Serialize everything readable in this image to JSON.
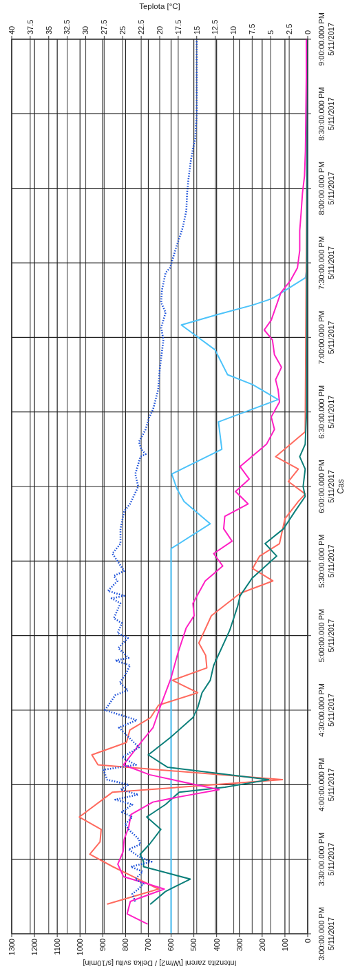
{
  "chart_data": {
    "type": "line",
    "orientation": "horizontal",
    "xlabel": "Intenzita zareni [W/m2] / Delka svitu [s/10min]",
    "x2label": "Teplota [°C]",
    "ylabel": "Cas",
    "ylim": [
      "2017-05-11T15:00",
      "2017-05-11T21:00"
    ],
    "yticks": [
      {
        "value": "2017-05-11T15:00",
        "label": "3:00:00.000 PM\n5/11/2017"
      },
      {
        "value": "2017-05-11T15:30",
        "label": "3:30:00.000 PM\n5/11/2017"
      },
      {
        "value": "2017-05-11T16:00",
        "label": "4:00:00.000 PM\n5/11/2017"
      },
      {
        "value": "2017-05-11T16:30",
        "label": "4:30:00.000 PM\n5/11/2017"
      },
      {
        "value": "2017-05-11T17:00",
        "label": "5:00:00.000 PM\n5/11/2017"
      },
      {
        "value": "2017-05-11T17:30",
        "label": "5:30:00.000 PM\n5/11/2017"
      },
      {
        "value": "2017-05-11T18:00",
        "label": "6:00:00.000 PM\n5/11/2017"
      },
      {
        "value": "2017-05-11T18:30",
        "label": "6:30:00.000 PM\n5/11/2017"
      },
      {
        "value": "2017-05-11T19:00",
        "label": "7:00:00.000 PM\n5/11/2017"
      },
      {
        "value": "2017-05-11T19:30",
        "label": "7:30:00.000 PM\n5/11/2017"
      },
      {
        "value": "2017-05-11T20:00",
        "label": "8:00:00.000 PM\n5/11/2017"
      },
      {
        "value": "2017-05-11T20:30",
        "label": "8:30:00.000 PM\n5/11/2017"
      },
      {
        "value": "2017-05-11T21:00",
        "label": "9:00:00.000 PM\n5/11/2017"
      }
    ],
    "xlim": [
      1300,
      0
    ],
    "xticks": [
      1300,
      1200,
      1100,
      1000,
      900,
      800,
      700,
      600,
      500,
      400,
      300,
      200,
      100,
      0
    ],
    "x2lim": [
      40,
      0
    ],
    "x2ticks": [
      40,
      37.5,
      35,
      32.5,
      30,
      27.5,
      25,
      22.5,
      20,
      17.5,
      15,
      12.5,
      10,
      7.5,
      5,
      2.5,
      0
    ],
    "grid": true,
    "marker": "none",
    "series": [
      {
        "color": "#4cc3fa",
        "x": [
          "2017-05-11T15:00",
          "2017-05-11T17:35",
          "2017-05-11T17:45",
          "2017-05-11T17:54",
          "2017-05-11T17:59",
          "2017-05-11T18:05",
          "2017-05-11T18:15",
          "2017-05-11T18:26",
          "2017-05-11T18:35",
          "2017-05-11T18:41",
          "2017-05-11T18:45",
          "2017-05-11T18:55",
          "2017-05-11T19:05",
          "2017-05-11T19:09",
          "2017-05-11T19:13",
          "2017-05-11T19:15",
          "2017-05-11T19:16",
          "2017-05-11T19:24",
          "2017-05-11T19:30",
          "2017-05-11T21:00"
        ],
        "values": [
          600,
          600,
          428,
          543,
          574,
          597,
          377,
          392,
          130,
          242,
          352,
          407,
          555,
          403,
          242,
          176,
          150,
          10,
          0,
          0
        ]
      },
      {
        "color": "#ff6a5e",
        "x": [
          "2017-05-11T15:12",
          "2017-05-11T15:18",
          "2017-05-11T15:27",
          "2017-05-11T15:32",
          "2017-05-11T15:37",
          "2017-05-11T15:42",
          "2017-05-11T15:47",
          "2017-05-11T15:57",
          "2017-05-11T16:02",
          "2017-05-11T16:08",
          "2017-05-11T16:12",
          "2017-05-11T16:17",
          "2017-05-11T16:22",
          "2017-05-11T16:27",
          "2017-05-11T16:32",
          "2017-05-11T16:37",
          "2017-05-11T16:42",
          "2017-05-11T16:47",
          "2017-05-11T16:52",
          "2017-05-11T16:57",
          "2017-05-11T17:08",
          "2017-05-11T17:17",
          "2017-05-11T17:22",
          "2017-05-11T17:27",
          "2017-05-11T17:32",
          "2017-05-11T17:37",
          "2017-05-11T17:47",
          "2017-05-11T17:54",
          "2017-05-11T17:57",
          "2017-05-11T18:02",
          "2017-05-11T18:07",
          "2017-05-11T18:12",
          "2017-05-11T18:22",
          "2017-05-11T21:00"
        ],
        "values": [
          879,
          655,
          856,
          957,
          912,
          907,
          1003,
          857,
          111,
          921,
          948,
          796,
          781,
          690,
          655,
          483,
          594,
          443,
          448,
          478,
          423,
          297,
          153,
          242,
          211,
          124,
          100,
          41,
          11,
          85,
          41,
          141,
          11,
          0
        ]
      },
      {
        "color": "#0b7f7a",
        "x": [
          "2017-05-11T15:12",
          "2017-05-11T15:17",
          "2017-05-11T15:22",
          "2017-05-11T15:27",
          "2017-05-11T15:29",
          "2017-05-11T15:32",
          "2017-05-11T15:36",
          "2017-05-11T15:42",
          "2017-05-11T15:47",
          "2017-05-11T15:52",
          "2017-05-11T15:57",
          "2017-05-11T15:59",
          "2017-05-11T16:02",
          "2017-05-11T16:07",
          "2017-05-11T16:12",
          "2017-05-11T16:19",
          "2017-05-11T16:27",
          "2017-05-11T16:31",
          "2017-05-11T16:37",
          "2017-05-11T16:42",
          "2017-05-11T16:48",
          "2017-05-11T17:02",
          "2017-05-11T17:12",
          "2017-05-11T17:16",
          "2017-05-11T17:23",
          "2017-05-11T17:32",
          "2017-05-11T17:37",
          "2017-05-11T17:43",
          "2017-05-11T17:50",
          "2017-05-11T17:56",
          "2017-05-11T18:00",
          "2017-05-11T18:07",
          "2017-05-11T18:12",
          "2017-05-11T18:17",
          "2017-05-11T18:30",
          "2017-05-11T19:00",
          "2017-05-11T20:00",
          "2017-05-11T21:00"
        ],
        "values": [
          690,
          625,
          516,
          721,
          721,
          736,
          695,
          645,
          707,
          625,
          564,
          363,
          171,
          615,
          700,
          603,
          504,
          483,
          464,
          428,
          413,
          343,
          307,
          297,
          245,
          136,
          187,
          106,
          56,
          11,
          20,
          11,
          35,
          11,
          5,
          4,
          3,
          2
        ]
      },
      {
        "color": "#ff1fc4",
        "x": [
          "2017-05-11T15:04",
          "2017-05-11T15:08",
          "2017-05-11T15:13",
          "2017-05-11T15:18",
          "2017-05-11T15:20",
          "2017-05-11T15:23",
          "2017-05-11T15:28",
          "2017-05-11T15:33",
          "2017-05-11T15:38",
          "2017-05-11T15:43",
          "2017-05-11T15:48",
          "2017-05-11T15:53",
          "2017-05-11T15:55",
          "2017-05-11T15:58",
          "2017-05-11T16:00",
          "2017-05-11T16:04",
          "2017-05-11T16:08",
          "2017-05-11T16:18",
          "2017-05-11T16:23",
          "2017-05-11T16:32",
          "2017-05-11T16:43",
          "2017-05-11T16:53",
          "2017-05-11T17:03",
          "2017-05-11T17:08",
          "2017-05-11T17:13",
          "2017-05-11T17:22",
          "2017-05-11T17:28",
          "2017-05-11T17:33",
          "2017-05-11T17:38",
          "2017-05-11T17:43",
          "2017-05-11T17:48",
          "2017-05-11T17:53",
          "2017-05-11T17:58",
          "2017-05-11T18:03",
          "2017-05-11T18:08",
          "2017-05-11T18:17",
          "2017-05-11T18:23",
          "2017-05-11T18:28",
          "2017-05-11T18:34",
          "2017-05-11T18:39",
          "2017-05-11T18:43",
          "2017-05-11T18:48",
          "2017-05-11T18:53",
          "2017-05-11T18:59",
          "2017-05-11T19:03",
          "2017-05-11T19:07",
          "2017-05-11T19:18",
          "2017-05-11T19:23",
          "2017-05-11T19:28",
          "2017-05-11T19:35",
          "2017-05-11T19:43",
          "2017-05-11T19:50",
          "2017-05-11T19:58",
          "2017-05-11T20:05",
          "2017-05-11T20:15",
          "2017-05-11T20:30",
          "2017-05-11T20:45",
          "2017-05-11T21:00"
        ],
        "values": [
          705,
          793,
          779,
          630,
          700,
          809,
          834,
          811,
          806,
          786,
          776,
          680,
          570,
          389,
          494,
          694,
          809,
          724,
          679,
          645,
          600,
          570,
          534,
          499,
          504,
          450,
          373,
          413,
          332,
          369,
          364,
          262,
          317,
          257,
          297,
          181,
          146,
          160,
          124,
          130,
          141,
          115,
          146,
          155,
          191,
          160,
          118,
          75,
          45,
          35,
          35,
          29,
          23,
          14,
          10,
          8,
          6,
          6
        ]
      },
      {
        "color": "#1a4fd8",
        "axis": "x2",
        "line_style": "dotted",
        "x": [
          "2017-05-11T15:13",
          "2017-05-11T15:16",
          "2017-05-11T15:18",
          "2017-05-11T15:20",
          "2017-05-11T15:22",
          "2017-05-11T15:25",
          "2017-05-11T15:27",
          "2017-05-11T15:29",
          "2017-05-11T15:31",
          "2017-05-11T15:34",
          "2017-05-11T15:36",
          "2017-05-11T15:38",
          "2017-05-11T15:42",
          "2017-05-11T15:44",
          "2017-05-11T15:47",
          "2017-05-11T15:49",
          "2017-05-11T15:52",
          "2017-05-11T15:54",
          "2017-05-11T15:56",
          "2017-05-11T15:58",
          "2017-05-11T16:00",
          "2017-05-11T16:02",
          "2017-05-11T16:06",
          "2017-05-11T16:08",
          "2017-05-11T16:11",
          "2017-05-11T16:15",
          "2017-05-11T16:20",
          "2017-05-11T16:23",
          "2017-05-11T16:26",
          "2017-05-11T16:30",
          "2017-05-11T16:36",
          "2017-05-11T16:38",
          "2017-05-11T16:41",
          "2017-05-11T16:44",
          "2017-05-11T16:48",
          "2017-05-11T16:50",
          "2017-05-11T16:51",
          "2017-05-11T16:55",
          "2017-05-11T16:59",
          "2017-05-11T17:01",
          "2017-05-11T17:05",
          "2017-05-11T17:07",
          "2017-05-11T17:13",
          "2017-05-11T17:15",
          "2017-05-11T17:16",
          "2017-05-11T17:18",
          "2017-05-11T17:22",
          "2017-05-11T17:24",
          "2017-05-11T17:26",
          "2017-05-11T17:33",
          "2017-05-11T17:37",
          "2017-05-11T17:43",
          "2017-05-11T17:50",
          "2017-05-11T17:53",
          "2017-05-11T18:00",
          "2017-05-11T18:05",
          "2017-05-11T18:12",
          "2017-05-11T18:13",
          "2017-05-11T18:15",
          "2017-05-11T18:18",
          "2017-05-11T18:23",
          "2017-05-11T18:28",
          "2017-05-11T18:31",
          "2017-05-11T18:39",
          "2017-05-11T18:47",
          "2017-05-11T18:59",
          "2017-05-11T19:04",
          "2017-05-11T19:10",
          "2017-05-11T19:14",
          "2017-05-11T19:19",
          "2017-05-11T19:26",
          "2017-05-11T19:28",
          "2017-05-11T19:36",
          "2017-05-11T19:44",
          "2017-05-11T19:51",
          "2017-05-11T19:58",
          "2017-05-11T20:04",
          "2017-05-11T20:11",
          "2017-05-11T20:16",
          "2017-05-11T20:20",
          "2017-05-11T20:30",
          "2017-05-11T21:00"
        ],
        "values": [
          23.3,
          23.7,
          22.9,
          22.2,
          23.3,
          22.3,
          23.9,
          21.1,
          22.8,
          24.2,
          22.6,
          22.8,
          24.2,
          24.7,
          23.7,
          25.1,
          23.7,
          26.0,
          22.9,
          25.3,
          24.2,
          27.1,
          27.6,
          23.2,
          25.1,
          22.8,
          24.5,
          25.5,
          23.1,
          27.4,
          26.0,
          24.3,
          25.4,
          24.7,
          24.0,
          26.0,
          24.2,
          25.6,
          24.3,
          25.7,
          25.1,
          26.2,
          25.3,
          26.5,
          24.8,
          27.0,
          25.7,
          26.2,
          24.8,
          26.4,
          25.3,
          25.3,
          24.8,
          24.0,
          22.9,
          23.3,
          22.6,
          21.9,
          22.5,
          22.8,
          21.9,
          21.4,
          20.9,
          20.2,
          20.0,
          19.5,
          19.8,
          19.2,
          19.8,
          19.7,
          19.2,
          18.6,
          17.8,
          16.9,
          16.4,
          16.3,
          16.1,
          15.8,
          15.5,
          15.2,
          15.0,
          15.0
        ]
      }
    ]
  }
}
